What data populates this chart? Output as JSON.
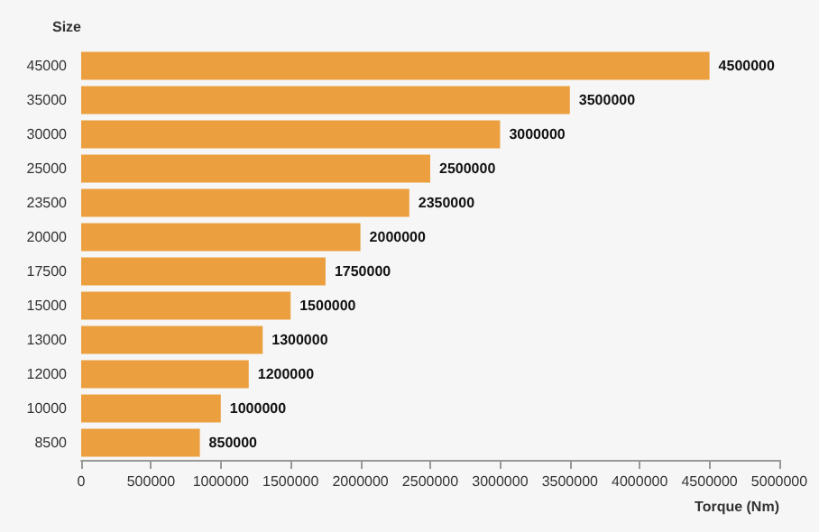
{
  "chart_data": {
    "type": "bar",
    "orientation": "horizontal",
    "xlabel": "Torque (Nm)",
    "ylabel": "Size",
    "categories": [
      "45000",
      "35000",
      "30000",
      "25000",
      "23500",
      "20000",
      "17500",
      "15000",
      "13000",
      "12000",
      "10000",
      "8500"
    ],
    "values": [
      4500000,
      3500000,
      3000000,
      2500000,
      2350000,
      2000000,
      1750000,
      1500000,
      1300000,
      1200000,
      1000000,
      850000
    ],
    "color": "#eb9f3e",
    "xlim": [
      0,
      5000000
    ],
    "xticks": [
      0,
      500000,
      1000000,
      1500000,
      2000000,
      2500000,
      3000000,
      3500000,
      4000000,
      4500000,
      5000000
    ],
    "data_labels": true,
    "grid": false
  }
}
